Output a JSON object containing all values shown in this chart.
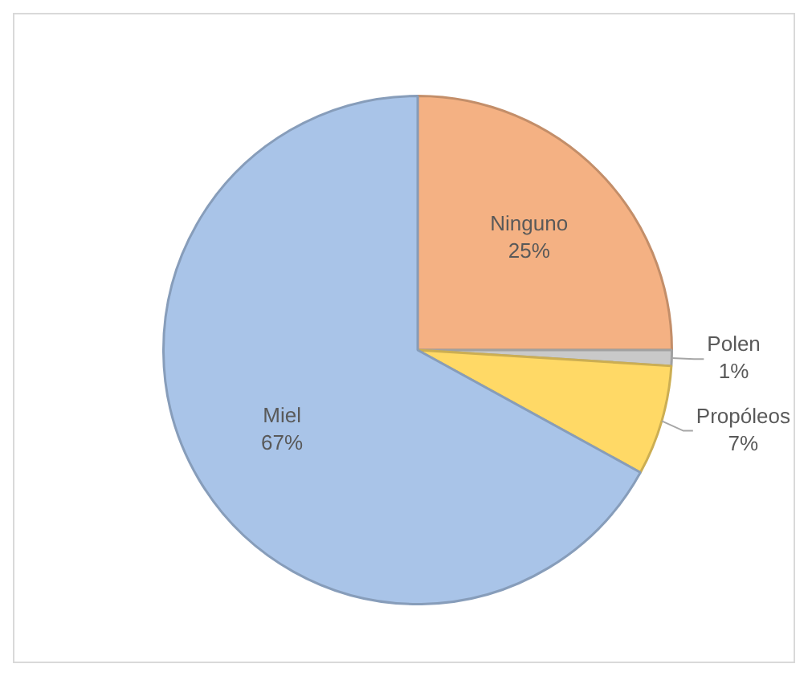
{
  "chart_data": {
    "type": "pie",
    "categories": [
      "Ninguno",
      "Polen",
      "Propóleos",
      "Miel"
    ],
    "values": [
      25,
      1,
      7,
      67
    ],
    "colors": [
      "#f4b183",
      "#c9c9c9",
      "#ffd966",
      "#a9c4e8"
    ],
    "value_labels": [
      "25%",
      "1%",
      "7%",
      "67%"
    ],
    "legend": false
  }
}
